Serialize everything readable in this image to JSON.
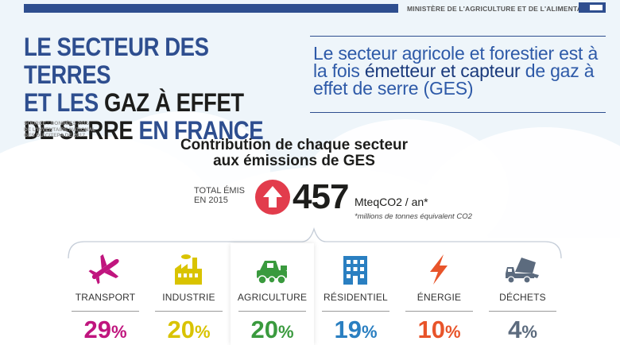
{
  "header": {
    "ministry": "MINISTÈRE DE L'AGRICULTURE ET DE L'ALIMENTATION"
  },
  "title": {
    "line1": "LE SECTEUR DES TERRES",
    "line2a": "ET LES ",
    "line2b": "GAZ À EFFET",
    "line3a": "DE SERRE ",
    "line3b": "EN FRANCE"
  },
  "source": {
    "line1": "SOURCE : DONNÉES 2015",
    "line2": "DE L'INVENTAIRE NATIONAL",
    "line3": "GES DU CITEPA DE 2017"
  },
  "subtitle": {
    "part1": "Le secteur agricole et forestier est à la fois ",
    "part2": "émetteur et capteur",
    "part3": " de gaz à effet de serre (GES)"
  },
  "contribution": {
    "line1": "Contribution de chaque secteur",
    "line2": "aux émissions de GES"
  },
  "total": {
    "label_line1": "TOTAL ÉMIS",
    "label_line2": "EN 2015",
    "value": "457",
    "unit": "MteqCO2 / an*",
    "note": "*millions de tonnes équivalent CO2"
  },
  "colors": {
    "blue": "#2e4e8f",
    "red": "#e23c4c",
    "transport": "#c0157e",
    "industrie": "#d9c300",
    "agriculture": "#3a9a3e",
    "residentiel": "#2a7fc1",
    "energie": "#e8542a",
    "dechets": "#5c6b7e"
  },
  "sectors": [
    {
      "name": "TRANSPORT",
      "pct": "29",
      "sign": "%",
      "icon": "airplane-icon",
      "color": "#c0157e"
    },
    {
      "name": "INDUSTRIE",
      "pct": "20",
      "sign": "%",
      "icon": "factory-icon",
      "color": "#d9c300"
    },
    {
      "name": "AGRICULTURE",
      "pct": "20",
      "sign": "%",
      "icon": "harvester-icon",
      "color": "#3a9a3e"
    },
    {
      "name": "RÉSIDENTIEL",
      "pct": "19",
      "sign": "%",
      "icon": "building-icon",
      "color": "#2a7fc1"
    },
    {
      "name": "ÉNERGIE",
      "pct": "10",
      "sign": "%",
      "icon": "lightning-icon",
      "color": "#e8542a"
    },
    {
      "name": "DÉCHETS",
      "pct": "4",
      "sign": "%",
      "icon": "dump-truck-icon",
      "color": "#5c6b7e"
    }
  ]
}
